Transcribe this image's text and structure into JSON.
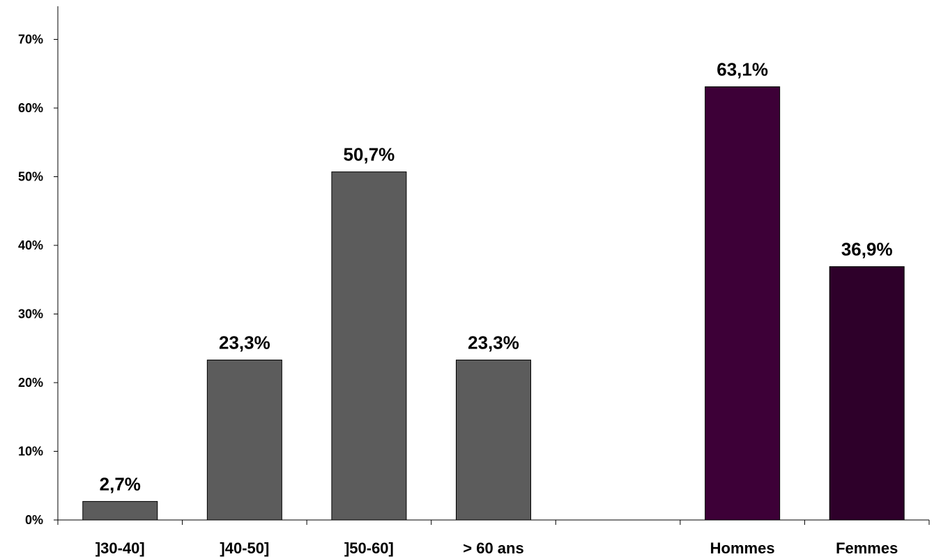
{
  "chart_data": {
    "type": "bar",
    "title": "",
    "xlabel": "",
    "ylabel": "",
    "ylim": [
      0,
      70
    ],
    "yticks": [
      "0%",
      "10%",
      "20%",
      "30%",
      "40%",
      "50%",
      "60%",
      "70%"
    ],
    "grid": false,
    "legend": "none",
    "categories": [
      "]30-40]",
      "]40-50]",
      "]50-60]",
      "> 60 ans",
      "",
      "Hommes",
      "Femmes"
    ],
    "values": [
      2.7,
      23.3,
      50.7,
      23.3,
      null,
      63.1,
      36.9
    ],
    "value_labels": [
      "2,7%",
      "23,3%",
      "50,7%",
      "23,3%",
      "",
      "63,1%",
      "36,9%"
    ],
    "colors": [
      "#5c5c5c",
      "#5c5c5c",
      "#5c5c5c",
      "#5c5c5c",
      "",
      "#3d0037",
      "#2e002a"
    ]
  }
}
